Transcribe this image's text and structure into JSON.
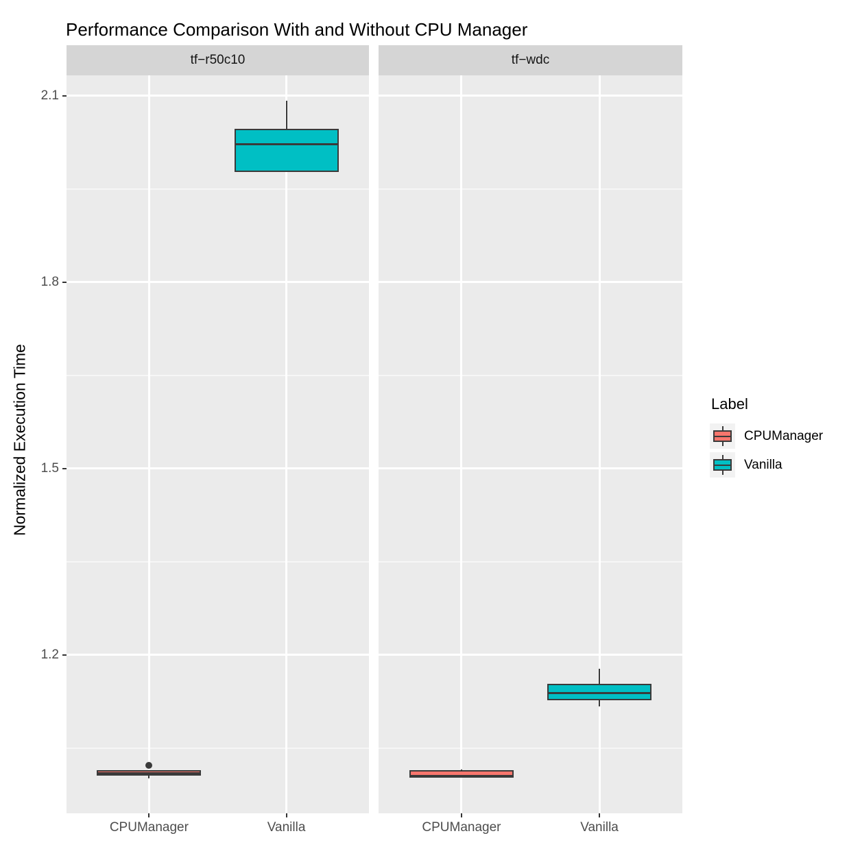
{
  "title": "Performance Comparison With and Without CPU Manager",
  "y_axis": {
    "title": "Normalized Execution Time",
    "tick_labels": [
      "2.1",
      "1.8",
      "1.5",
      "1.2"
    ]
  },
  "x_axis": {
    "tick_labels": [
      "CPUManager",
      "Vanilla"
    ]
  },
  "legend": {
    "title": "Label",
    "entries": [
      {
        "label": "CPUManager",
        "color": "#F8766D"
      },
      {
        "label": "Vanilla",
        "color": "#00BFC4"
      }
    ]
  },
  "colors": {
    "cpumanager_fill": "#F8766D",
    "vanilla_fill": "#00BFC4",
    "box_stroke": "#3A3A3A",
    "panel_background": "#EBEBEB",
    "strip_background": "#D5D5D5",
    "legend_key_background": "#F2F2F2",
    "tick_text": "#4D4D4D"
  },
  "chart_data": {
    "type": "boxplot",
    "title": "Performance Comparison With and Without CPU Manager",
    "xlabel": "",
    "ylabel": "Normalized Execution Time",
    "y_domain": [
      0.945,
      2.133
    ],
    "y_major_gridlines": [
      2.1,
      1.8,
      1.5,
      1.2
    ],
    "y_minor_gridlines": [
      1.95,
      1.65,
      1.35,
      1.05
    ],
    "grid": true,
    "legend_position": "right",
    "categories": [
      "CPUManager",
      "Vanilla"
    ],
    "facets": [
      {
        "label": "tf−r50c10",
        "boxes": [
          {
            "group": "CPUManager",
            "color": "#F8766D",
            "whisker_low": 1.001,
            "q1": 1.006,
            "median": 1.01,
            "q3": 1.014,
            "whisker_high": 1.015,
            "outliers": [
              1.022
            ]
          },
          {
            "group": "Vanilla",
            "color": "#00BFC4",
            "whisker_low": 1.978,
            "q1": 1.978,
            "median": 2.022,
            "q3": 2.047,
            "whisker_high": 2.092,
            "outliers": []
          }
        ]
      },
      {
        "label": "tf−wdc",
        "boxes": [
          {
            "group": "CPUManager",
            "color": "#F8766D",
            "whisker_low": 1.001,
            "q1": 1.002,
            "median": 1.005,
            "q3": 1.014,
            "whisker_high": 1.016,
            "outliers": []
          },
          {
            "group": "Vanilla",
            "color": "#00BFC4",
            "whisker_low": 1.117,
            "q1": 1.127,
            "median": 1.139,
            "q3": 1.154,
            "whisker_high": 1.178,
            "outliers": []
          }
        ]
      }
    ]
  }
}
